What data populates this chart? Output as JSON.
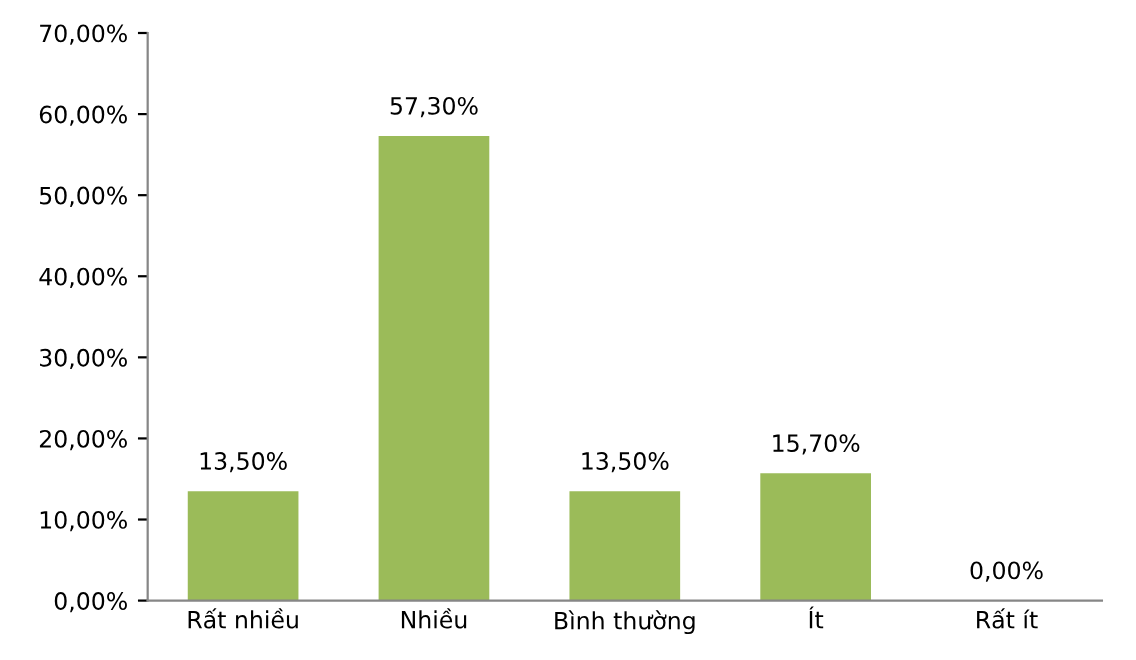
{
  "chart_data": {
    "type": "bar",
    "categories": [
      "Rất nhiều",
      "Nhiều",
      "Bình thường",
      "Ít",
      "Rất ít"
    ],
    "values": [
      13.5,
      57.3,
      13.5,
      15.7,
      0
    ],
    "value_labels": [
      "13,50%",
      "57,30%",
      "13,50%",
      "15,70%",
      "0,00%"
    ],
    "color": "#9bbb59",
    "ylim": [
      0,
      70
    ],
    "yticks": [
      {
        "value": 0,
        "label": "0,00%"
      },
      {
        "value": 10,
        "label": "10,00%"
      },
      {
        "value": 20,
        "label": "20,00%"
      },
      {
        "value": 30,
        "label": "30,00%"
      },
      {
        "value": 40,
        "label": "40,00%"
      },
      {
        "value": 50,
        "label": "50,00%"
      },
      {
        "value": 60,
        "label": "60,00%"
      },
      {
        "value": 70,
        "label": "70,00%"
      }
    ]
  }
}
